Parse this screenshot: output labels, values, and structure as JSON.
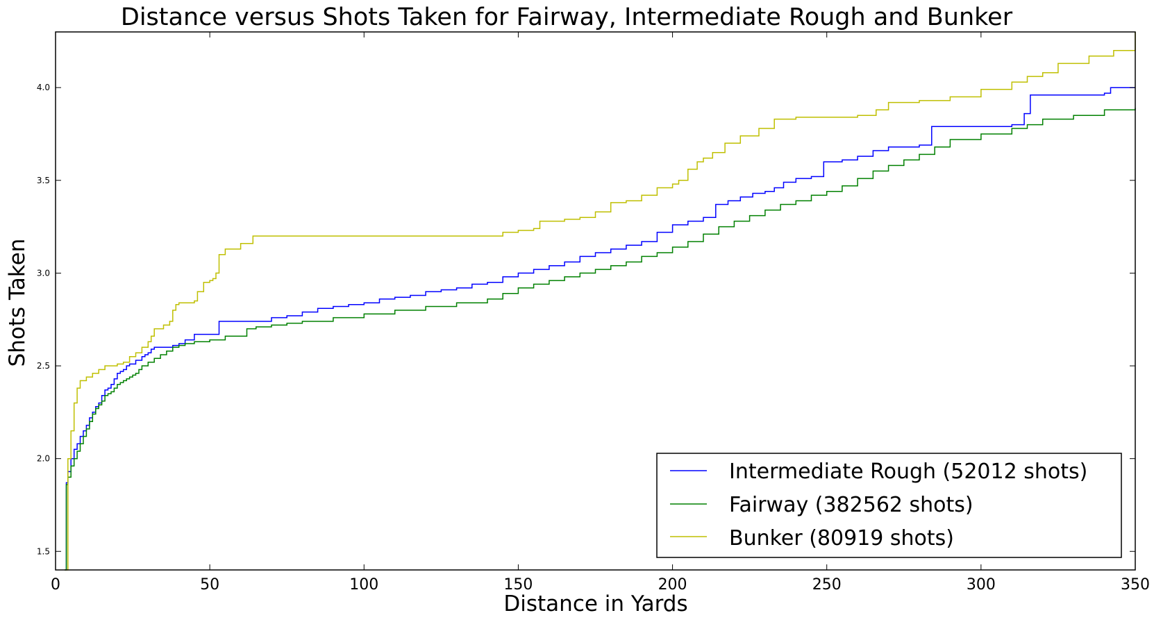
{
  "chart_data": {
    "type": "line",
    "title": "Distance versus Shots Taken for Fairway, Intermediate Rough and Bunker",
    "xlabel": "Distance in Yards",
    "ylabel": "Shots Taken",
    "xlim": [
      0,
      350
    ],
    "ylim": [
      1.4,
      4.3
    ],
    "xticks": [
      0,
      50,
      100,
      150,
      200,
      250,
      300,
      350
    ],
    "xtick_labels": [
      "0",
      "50",
      "100",
      "150",
      "200",
      "250",
      "300",
      "350"
    ],
    "yticks": [
      1.5,
      2.0,
      2.5,
      3.0,
      3.5,
      4.0
    ],
    "ytick_labels": [
      "1.5",
      "2.0",
      "2.5",
      "3.0",
      "3.5",
      "4.0"
    ],
    "grid": false,
    "legend_position": "lower-right",
    "series": [
      {
        "name": "Intermediate Rough (52012 shots)",
        "color": "#0000ff",
        "x": [
          3,
          3.5,
          4,
          5,
          6,
          7,
          8,
          9,
          10,
          11,
          12,
          13,
          14,
          15,
          16,
          17,
          18,
          19,
          20,
          21,
          22,
          23,
          24,
          25,
          26,
          27,
          28,
          29,
          30,
          31,
          32,
          35,
          38,
          40,
          42,
          45,
          50,
          53,
          60,
          65,
          70,
          75,
          80,
          85,
          90,
          95,
          100,
          105,
          110,
          115,
          120,
          125,
          130,
          135,
          140,
          145,
          150,
          155,
          160,
          165,
          170,
          175,
          180,
          185,
          190,
          195,
          200,
          205,
          210,
          214,
          218,
          222,
          226,
          230,
          233,
          236,
          240,
          245,
          249,
          255,
          260,
          265,
          270,
          275,
          280,
          284,
          290,
          300,
          310,
          314,
          316,
          320,
          330,
          340,
          342,
          350
        ],
        "y": [
          1.4,
          1.87,
          1.93,
          2.0,
          2.05,
          2.08,
          2.12,
          2.15,
          2.18,
          2.22,
          2.25,
          2.28,
          2.3,
          2.34,
          2.37,
          2.38,
          2.4,
          2.43,
          2.46,
          2.47,
          2.48,
          2.5,
          2.51,
          2.51,
          2.53,
          2.53,
          2.55,
          2.56,
          2.57,
          2.59,
          2.6,
          2.6,
          2.61,
          2.62,
          2.64,
          2.67,
          2.67,
          2.74,
          2.74,
          2.74,
          2.76,
          2.77,
          2.79,
          2.81,
          2.82,
          2.83,
          2.84,
          2.86,
          2.87,
          2.88,
          2.9,
          2.91,
          2.92,
          2.94,
          2.95,
          2.98,
          3.0,
          3.02,
          3.04,
          3.06,
          3.09,
          3.11,
          3.13,
          3.15,
          3.17,
          3.22,
          3.26,
          3.28,
          3.3,
          3.37,
          3.39,
          3.41,
          3.43,
          3.44,
          3.46,
          3.49,
          3.51,
          3.52,
          3.6,
          3.61,
          3.63,
          3.66,
          3.68,
          3.68,
          3.69,
          3.79,
          3.79,
          3.79,
          3.8,
          3.86,
          3.96,
          3.96,
          3.96,
          3.97,
          4.0,
          4.0
        ]
      },
      {
        "name": "Fairway (382562 shots)",
        "color": "#008000",
        "x": [
          3,
          3.5,
          4,
          5,
          6,
          7,
          8,
          9,
          10,
          11,
          12,
          13,
          14,
          15,
          16,
          17,
          18,
          19,
          20,
          21,
          22,
          23,
          24,
          25,
          26,
          27,
          28,
          30,
          32,
          34,
          36,
          38,
          40,
          42,
          45,
          50,
          55,
          60,
          62,
          65,
          70,
          75,
          80,
          90,
          100,
          110,
          120,
          130,
          140,
          145,
          150,
          155,
          160,
          165,
          170,
          175,
          180,
          185,
          190,
          195,
          200,
          205,
          210,
          215,
          220,
          225,
          230,
          235,
          240,
          245,
          250,
          255,
          260,
          265,
          270,
          275,
          280,
          285,
          290,
          300,
          310,
          315,
          320,
          330,
          340,
          350
        ],
        "y": [
          1.4,
          1.86,
          1.9,
          1.96,
          2.0,
          2.04,
          2.08,
          2.12,
          2.16,
          2.2,
          2.24,
          2.27,
          2.29,
          2.31,
          2.34,
          2.35,
          2.36,
          2.38,
          2.4,
          2.41,
          2.42,
          2.43,
          2.44,
          2.45,
          2.46,
          2.48,
          2.5,
          2.52,
          2.54,
          2.56,
          2.58,
          2.6,
          2.61,
          2.62,
          2.63,
          2.64,
          2.66,
          2.66,
          2.7,
          2.71,
          2.72,
          2.73,
          2.74,
          2.76,
          2.78,
          2.8,
          2.82,
          2.84,
          2.86,
          2.89,
          2.92,
          2.94,
          2.96,
          2.98,
          3.0,
          3.02,
          3.04,
          3.06,
          3.09,
          3.11,
          3.14,
          3.17,
          3.21,
          3.25,
          3.28,
          3.31,
          3.34,
          3.37,
          3.39,
          3.42,
          3.44,
          3.47,
          3.51,
          3.55,
          3.58,
          3.61,
          3.64,
          3.68,
          3.72,
          3.75,
          3.78,
          3.8,
          3.83,
          3.85,
          3.88,
          3.89
        ]
      },
      {
        "name": "Bunker (80919 shots)",
        "color": "#bfbf00",
        "x": [
          3,
          4,
          5,
          6,
          7,
          8,
          10,
          12,
          14,
          16,
          18,
          20,
          22,
          24,
          26,
          28,
          30,
          31,
          32,
          35,
          37,
          38,
          39,
          40,
          42,
          45,
          46,
          48,
          50,
          51,
          52,
          53,
          55,
          60,
          64,
          70,
          80,
          100,
          120,
          140,
          145,
          150,
          155,
          157,
          165,
          170,
          175,
          180,
          185,
          190,
          195,
          200,
          202,
          205,
          208,
          210,
          213,
          217,
          222,
          228,
          233,
          240,
          250,
          260,
          266,
          270,
          280,
          290,
          300,
          310,
          315,
          320,
          325,
          335,
          343,
          350
        ],
        "y": [
          1.4,
          2.0,
          2.15,
          2.3,
          2.38,
          2.42,
          2.44,
          2.46,
          2.48,
          2.5,
          2.5,
          2.51,
          2.52,
          2.55,
          2.57,
          2.6,
          2.63,
          2.66,
          2.7,
          2.72,
          2.74,
          2.8,
          2.83,
          2.84,
          2.84,
          2.85,
          2.9,
          2.95,
          2.96,
          2.97,
          3.0,
          3.1,
          3.13,
          3.16,
          3.2,
          3.2,
          3.2,
          3.2,
          3.2,
          3.2,
          3.22,
          3.23,
          3.24,
          3.28,
          3.29,
          3.3,
          3.33,
          3.38,
          3.39,
          3.42,
          3.46,
          3.48,
          3.5,
          3.56,
          3.6,
          3.62,
          3.65,
          3.7,
          3.74,
          3.78,
          3.83,
          3.84,
          3.84,
          3.85,
          3.88,
          3.92,
          3.93,
          3.95,
          3.99,
          4.03,
          4.06,
          4.08,
          4.13,
          4.17,
          4.2,
          4.3
        ]
      }
    ]
  }
}
